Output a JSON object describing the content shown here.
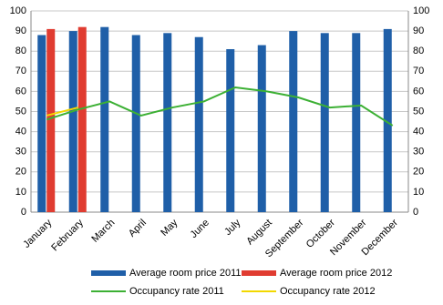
{
  "chart_data": {
    "type": "bar",
    "categories": [
      "January",
      "February",
      "March",
      "April",
      "May",
      "June",
      "July",
      "August",
      "September",
      "October",
      "November",
      "December"
    ],
    "series": [
      {
        "name": "Average room price 2011",
        "type": "bar",
        "color": "#1f5fa8",
        "values": [
          88,
          90,
          92,
          88,
          89,
          87,
          81,
          83,
          90,
          89,
          89,
          91
        ]
      },
      {
        "name": "Average room price 2012",
        "type": "bar",
        "color": "#e03c31",
        "values": [
          91,
          92,
          null,
          null,
          null,
          null,
          null,
          null,
          null,
          null,
          null,
          null
        ]
      },
      {
        "name": "Occupancy rate 2011",
        "type": "line",
        "axis": "y2",
        "color": "#3cb034",
        "values": [
          46,
          51,
          55,
          48,
          52,
          55,
          62,
          60,
          57,
          52,
          53,
          43
        ]
      },
      {
        "name": "Occupancy rate 2012",
        "type": "line",
        "axis": "y2",
        "color": "#f2d800",
        "values": [
          48,
          52,
          null,
          null,
          null,
          null,
          null,
          null,
          null,
          null,
          null,
          null
        ]
      }
    ],
    "ylim": [
      0,
      100
    ],
    "yticks": [
      0,
      10,
      20,
      30,
      40,
      50,
      60,
      70,
      80,
      90,
      100
    ],
    "y2lim": [
      0,
      100
    ],
    "y2ticks": [
      0,
      10,
      20,
      30,
      40,
      50,
      60,
      70,
      80,
      90,
      100
    ],
    "grid": true
  }
}
